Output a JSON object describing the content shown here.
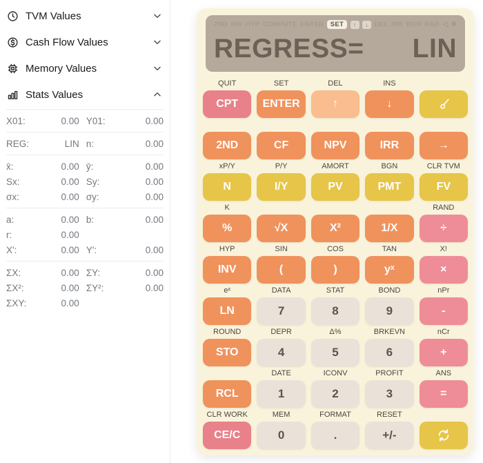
{
  "colors": {
    "body_background": "#ffffff",
    "calculator_body": "#faf3dc",
    "display_background": "#b5a99b",
    "display_text": "#6c6156",
    "key_red": "#e8818a",
    "key_orange": "#f0925c",
    "key_light_orange": "#f9bd90",
    "key_yellow": "#e6c548",
    "key_pink": "#ee8d97",
    "key_gray": "#eae2d9",
    "sidebar_text": "#72777f"
  },
  "sidebar": {
    "sections": [
      {
        "label": "TVM Values",
        "icon": "clock",
        "expanded": false
      },
      {
        "label": "Cash Flow Values",
        "icon": "dollar-circle",
        "expanded": false
      },
      {
        "label": "Memory Values",
        "icon": "chip",
        "expanded": false
      },
      {
        "label": "Stats Values",
        "icon": "bar-chart",
        "expanded": true
      }
    ],
    "stats_groups": [
      {
        "rows": [
          [
            {
              "label": "X01:",
              "value": "0.00"
            },
            {
              "label": "Y01:",
              "value": "0.00"
            }
          ]
        ]
      },
      {
        "rows": [
          [
            {
              "label": "REG:",
              "value": "LIN"
            },
            {
              "label": "n:",
              "value": "0.00"
            }
          ]
        ]
      },
      {
        "rows": [
          [
            {
              "label": "x̄:",
              "value": "0.00"
            },
            {
              "label": "ȳ:",
              "value": "0.00"
            }
          ],
          [
            {
              "label": "Sx:",
              "value": "0.00"
            },
            {
              "label": "Sy:",
              "value": "0.00"
            }
          ],
          [
            {
              "label": "σx:",
              "value": "0.00"
            },
            {
              "label": "σy:",
              "value": "0.00"
            }
          ]
        ]
      },
      {
        "rows": [
          [
            {
              "label": "a:",
              "value": "0.00"
            },
            {
              "label": "b:",
              "value": "0.00"
            }
          ],
          [
            {
              "label": "r:",
              "value": "0.00"
            },
            null
          ],
          [
            {
              "label": "X':",
              "value": "0.00"
            },
            {
              "label": "Y':",
              "value": "0.00"
            }
          ]
        ]
      },
      {
        "rows": [
          [
            {
              "label": "ΣX:",
              "value": "0.00"
            },
            {
              "label": "ΣY:",
              "value": "0.00"
            }
          ],
          [
            {
              "label": "ΣX²:",
              "value": "0.00"
            },
            {
              "label": "ΣY²:",
              "value": "0.00"
            }
          ],
          [
            {
              "label": "ΣXY:",
              "value": "0.00"
            },
            null
          ]
        ]
      }
    ]
  },
  "calculator": {
    "display": {
      "main": "REGRESS=",
      "mode": "LIN"
    },
    "status_bar": [
      {
        "name": "2nd",
        "text": "2ND",
        "state": "inactive"
      },
      {
        "name": "inv",
        "text": "INV",
        "state": "inactive"
      },
      {
        "name": "hyp",
        "text": "HYP",
        "state": "inactive"
      },
      {
        "name": "compute",
        "text": "COMPUTE",
        "state": "inactive"
      },
      {
        "name": "enter",
        "text": "ENTER",
        "state": "inactive"
      },
      {
        "name": "set",
        "text": "SET",
        "state": "active"
      },
      {
        "name": "up",
        "text": "↑",
        "state": "pill"
      },
      {
        "name": "down",
        "text": "↓",
        "state": "pill"
      },
      {
        "name": "del",
        "text": "DEL",
        "state": "inactive"
      },
      {
        "name": "ins",
        "text": "INS",
        "state": "inactive"
      },
      {
        "name": "bgn",
        "text": "BGN",
        "state": "inactive"
      },
      {
        "name": "rad",
        "text": "RAD",
        "state": "inactive"
      },
      {
        "name": "prev-triangle",
        "text": "◁",
        "state": "inactive"
      },
      {
        "name": "asterisk",
        "text": "✱",
        "state": "inactive"
      }
    ],
    "keypad": [
      [
        {
          "name": "cpt-key",
          "sub": "QUIT",
          "label": "CPT",
          "color": "red"
        },
        {
          "name": "enter-key",
          "sub": "SET",
          "label": "ENTER",
          "color": "orange"
        },
        {
          "name": "up-arrow-key",
          "sub": "DEL",
          "label": "↑",
          "color": "lightorange"
        },
        {
          "name": "down-arrow-key",
          "sub": "INS",
          "label": "↓",
          "color": "orange"
        },
        {
          "name": "theme-brush-key",
          "sub": "",
          "icon": "brush",
          "color": "yellow"
        }
      ],
      [
        {
          "name": "2nd-key",
          "sub": "",
          "label": "2ND",
          "color": "orange"
        },
        {
          "name": "cf-key",
          "sub": "",
          "label": "CF",
          "color": "orange"
        },
        {
          "name": "npv-key",
          "sub": "",
          "label": "NPV",
          "color": "orange"
        },
        {
          "name": "irr-key",
          "sub": "",
          "label": "IRR",
          "color": "orange"
        },
        {
          "name": "right-arrow-key",
          "sub": "",
          "label": "→",
          "color": "orange"
        }
      ],
      [
        {
          "name": "n-key",
          "sub": "xP/Y",
          "label": "N",
          "color": "yellow"
        },
        {
          "name": "iy-key",
          "sub": "P/Y",
          "label": "I/Y",
          "color": "yellow"
        },
        {
          "name": "pv-key",
          "sub": "AMORT",
          "label": "PV",
          "color": "yellow"
        },
        {
          "name": "pmt-key",
          "sub": "BGN",
          "label": "PMT",
          "color": "yellow"
        },
        {
          "name": "fv-key",
          "sub": "CLR TVM",
          "label": "FV",
          "color": "yellow"
        }
      ],
      [
        {
          "name": "percent-key",
          "sub": "K",
          "label": "%",
          "color": "orange"
        },
        {
          "name": "sqrt-key",
          "sub": "",
          "label": "√X",
          "color": "orange"
        },
        {
          "name": "square-key",
          "sub": "",
          "label": "X²",
          "color": "orange"
        },
        {
          "name": "reciprocal-key",
          "sub": "",
          "label": "1/X",
          "color": "orange"
        },
        {
          "name": "divide-key",
          "sub": "RAND",
          "label": "÷",
          "color": "pink"
        }
      ],
      [
        {
          "name": "inv-key",
          "sub": "HYP",
          "label": "INV",
          "color": "orange"
        },
        {
          "name": "open-paren-key",
          "sub": "SIN",
          "label": "(",
          "color": "orange"
        },
        {
          "name": "close-paren-key",
          "sub": "COS",
          "label": ")",
          "color": "orange"
        },
        {
          "name": "power-key",
          "sub": "TAN",
          "label": "yˣ",
          "color": "orange"
        },
        {
          "name": "multiply-key",
          "sub": "X!",
          "label": "×",
          "color": "pink"
        }
      ],
      [
        {
          "name": "ln-key",
          "sub": "eˣ",
          "label": "LN",
          "color": "orange"
        },
        {
          "name": "digit-7-key",
          "sub": "DATA",
          "label": "7",
          "color": "gray"
        },
        {
          "name": "digit-8-key",
          "sub": "STAT",
          "label": "8",
          "color": "gray"
        },
        {
          "name": "digit-9-key",
          "sub": "BOND",
          "label": "9",
          "color": "gray"
        },
        {
          "name": "minus-key",
          "sub": "nPr",
          "label": "-",
          "color": "pink"
        }
      ],
      [
        {
          "name": "sto-key",
          "sub": "ROUND",
          "label": "STO",
          "color": "orange"
        },
        {
          "name": "digit-4-key",
          "sub": "DEPR",
          "label": "4",
          "color": "gray"
        },
        {
          "name": "digit-5-key",
          "sub": "Δ%",
          "label": "5",
          "color": "gray"
        },
        {
          "name": "digit-6-key",
          "sub": "BRKEVN",
          "label": "6",
          "color": "gray"
        },
        {
          "name": "plus-key",
          "sub": "nCr",
          "label": "+",
          "color": "pink"
        }
      ],
      [
        {
          "name": "rcl-key",
          "sub": "",
          "label": "RCL",
          "color": "orange"
        },
        {
          "name": "digit-1-key",
          "sub": "DATE",
          "label": "1",
          "color": "gray"
        },
        {
          "name": "digit-2-key",
          "sub": "ICONV",
          "label": "2",
          "color": "gray"
        },
        {
          "name": "digit-3-key",
          "sub": "PROFIT",
          "label": "3",
          "color": "gray"
        },
        {
          "name": "equals-key",
          "sub": "ANS",
          "label": "=",
          "color": "pink"
        }
      ],
      [
        {
          "name": "ce-c-key",
          "sub": "CLR WORK",
          "label": "CE/C",
          "color": "red"
        },
        {
          "name": "digit-0-key",
          "sub": "MEM",
          "label": "0",
          "color": "gray"
        },
        {
          "name": "decimal-key",
          "sub": "FORMAT",
          "label": ".",
          "color": "gray"
        },
        {
          "name": "sign-key",
          "sub": "RESET",
          "label": "+/-",
          "color": "gray"
        },
        {
          "name": "refresh-key",
          "sub": "",
          "icon": "refresh",
          "color": "yellow"
        }
      ]
    ]
  }
}
